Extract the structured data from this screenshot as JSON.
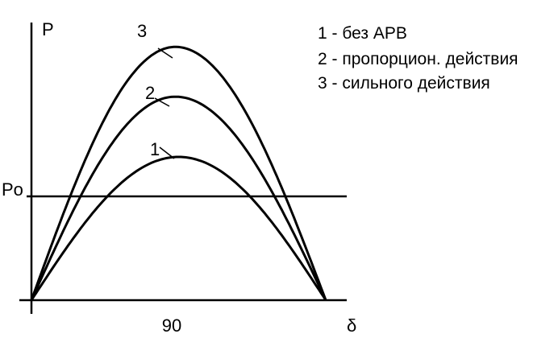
{
  "chart_data": {
    "type": "line",
    "title": "",
    "xlabel": "δ",
    "ylabel": "P",
    "xlim": [
      0,
      180
    ],
    "ylim": [
      0,
      3.1
    ],
    "x_tick_labels": [
      "90"
    ],
    "x_tick_values": [
      90
    ],
    "reference_line": {
      "label": "Po",
      "value": 1.0
    },
    "series": [
      {
        "name": "1",
        "peak_x": 90,
        "values": [
          [
            0,
            0
          ],
          [
            90,
            1.38
          ],
          [
            180,
            0
          ]
        ]
      },
      {
        "name": "2",
        "peak_x": 88,
        "values": [
          [
            0,
            0
          ],
          [
            88,
            1.96
          ],
          [
            180,
            0
          ]
        ]
      },
      {
        "name": "3",
        "peak_x": 88,
        "values": [
          [
            0,
            0
          ],
          [
            88,
            2.44
          ],
          [
            180,
            0
          ]
        ]
      }
    ],
    "legend": {
      "placement": "top-right",
      "entries": [
        "1 - без АРВ",
        "2 - пропорцион. действия",
        "3 - сильного действия"
      ]
    },
    "grid": false,
    "colors": {
      "line": "#000000",
      "background": "#ffffff"
    }
  }
}
